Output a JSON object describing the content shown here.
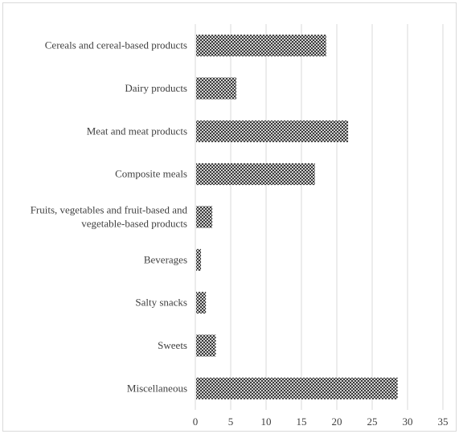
{
  "chart_data": {
    "type": "bar",
    "orientation": "horizontal",
    "categories": [
      "Cereals and cereal-based products",
      "Dairy products",
      "Meat and meat products",
      "Composite meals",
      "Fruits, vegetables and fruit-based and vegetable-based products",
      "Beverages",
      "Salty snacks",
      "Sweets",
      "Miscellaneous"
    ],
    "category_label_lines": [
      [
        "Cereals and cereal-based products"
      ],
      [
        "Dairy products"
      ],
      [
        "Meat and meat products"
      ],
      [
        "Composite meals"
      ],
      [
        "Fruits, vegetables and fruit-based and",
        "vegetable-based products"
      ],
      [
        "Beverages"
      ],
      [
        "Salty snacks"
      ],
      [
        "Sweets"
      ],
      [
        "Miscellaneous"
      ]
    ],
    "values": [
      18.5,
      5.8,
      21.6,
      16.9,
      2.4,
      0.8,
      1.5,
      2.9,
      28.6
    ],
    "title": "",
    "xlabel": "",
    "ylabel": "",
    "xlim": [
      0,
      35
    ],
    "xticks": [
      0,
      5,
      10,
      15,
      20,
      25,
      30,
      35
    ],
    "grid": "vertical",
    "legend": "none",
    "bar_pattern": "crosshatch",
    "colors": {
      "bar_ink": "#1a1a1a",
      "bar_paper": "#ffffff",
      "grid": "#d9d9d9",
      "text": "#404040"
    }
  }
}
